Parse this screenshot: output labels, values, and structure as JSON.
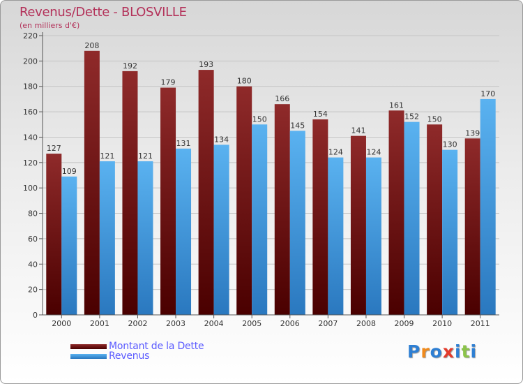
{
  "chart_data": {
    "type": "bar",
    "title": "Revenus/Dette - BLOSVILLE",
    "subtitle": "(en milliers d'€)",
    "categories": [
      "2000",
      "2001",
      "2002",
      "2003",
      "2004",
      "2005",
      "2006",
      "2007",
      "2008",
      "2009",
      "2010",
      "2011"
    ],
    "series": [
      {
        "name": "Montant de la Dette",
        "values": [
          127,
          208,
          192,
          179,
          193,
          180,
          166,
          154,
          141,
          161,
          150,
          139
        ],
        "color": "#7b1a1a"
      },
      {
        "name": "Revenus",
        "values": [
          109,
          121,
          121,
          131,
          134,
          150,
          145,
          124,
          124,
          152,
          130,
          170
        ],
        "color": "#4aa3e6"
      }
    ],
    "ylim": [
      0,
      220
    ],
    "yticks": [
      0,
      20,
      40,
      60,
      80,
      100,
      120,
      140,
      160,
      180,
      200,
      220
    ],
    "grid": true,
    "legend_position": "bottom-left"
  },
  "logo": {
    "letters": [
      "P",
      "r",
      "o",
      "x",
      "i",
      "t",
      "i"
    ],
    "colors": [
      "#2e7fd3",
      "#f08a1c",
      "#2e7fd3",
      "#e43a2b",
      "#2e7fd3",
      "#8bc34a",
      "#2e7fd3"
    ]
  }
}
